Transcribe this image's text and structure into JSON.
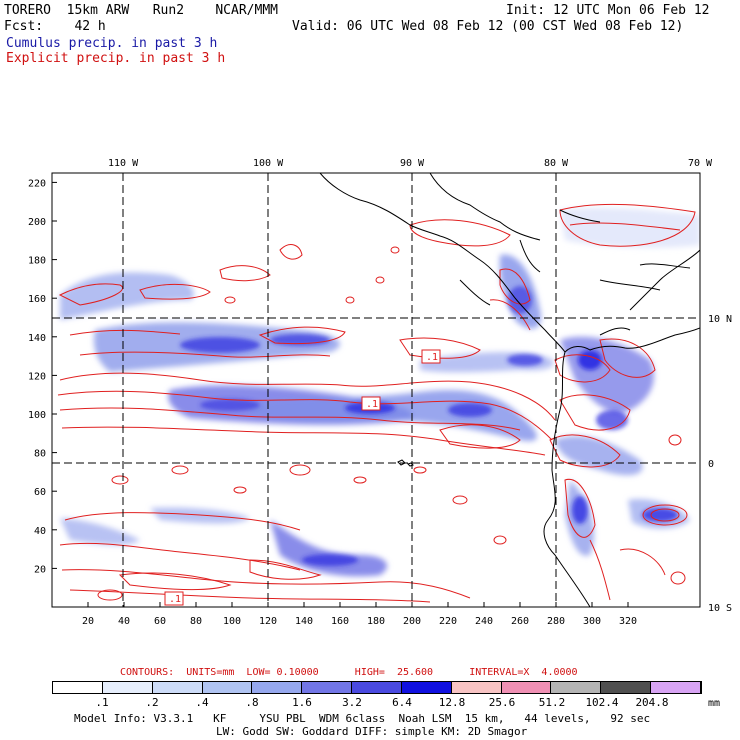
{
  "header": {
    "model": "TORERO",
    "resolution": "15km ARW",
    "run": "Run2",
    "org": "NCAR/MMM",
    "init": "Init: 12 UTC Mon 06 Feb 12",
    "fcst_label": "Fcst:",
    "fcst_value": "42 h",
    "valid": "Valid: 06 UTC Wed 08 Feb 12 (00 CST Wed 08 Feb 12)",
    "cumulus": "Cumulus precip. in past 3 h",
    "explicit": "Explicit precip. in past 3 h"
  },
  "map": {
    "top_lon_labels": [
      "110 W",
      "100 W",
      "90 W",
      "80 W",
      "70 W"
    ],
    "right_lat_labels": [
      "10 N",
      "0",
      "10 S"
    ],
    "x_ticks": [
      "20",
      "40",
      "60",
      "80",
      "100",
      "120",
      "140",
      "160",
      "180",
      "200",
      "220",
      "240",
      "260",
      "280",
      "300",
      "320"
    ],
    "y_ticks": [
      "20",
      "40",
      "60",
      "80",
      "100",
      "120",
      "140",
      "160",
      "180",
      "200",
      "220"
    ],
    "contour_labels": [
      ".1",
      ".1",
      ".1"
    ]
  },
  "contours_line": {
    "text": "CONTOURS:  UNITS=mm  LOW= 0.10000      HIGH=  25.600      INTERVAL=X  4.0000"
  },
  "colorbar": {
    "colors": [
      "#ffffff",
      "#e6eefc",
      "#cddcf8",
      "#b0c4f2",
      "#96a8ee",
      "#7276e6",
      "#4a4ae0",
      "#1010e0",
      "#f8c4c4",
      "#f090b4",
      "#b4b4b4",
      "#505050",
      "#d8a4f4"
    ],
    "labels": [
      ".1",
      ".2",
      ".4",
      ".8",
      "1.6",
      "3.2",
      "6.4",
      "12.8",
      "25.6",
      "51.2",
      "102.4",
      "204.8"
    ],
    "unit": "mm"
  },
  "footer": {
    "line1": "Model Info: V3.3.1   KF     YSU PBL  WDM 6class  Noah LSM  15 km,   44 levels,   92 sec",
    "line2": "LW: Godd SW: Goddard DIFF: simple KM: 2D Smagor"
  }
}
